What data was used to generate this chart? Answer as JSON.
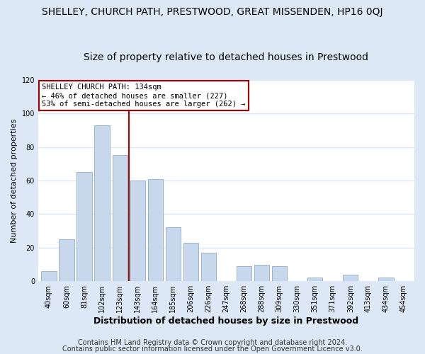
{
  "title": "SHELLEY, CHURCH PATH, PRESTWOOD, GREAT MISSENDEN, HP16 0QJ",
  "subtitle": "Size of property relative to detached houses in Prestwood",
  "xlabel": "Distribution of detached houses by size in Prestwood",
  "ylabel": "Number of detached properties",
  "bar_labels": [
    "40sqm",
    "60sqm",
    "81sqm",
    "102sqm",
    "123sqm",
    "143sqm",
    "164sqm",
    "185sqm",
    "206sqm",
    "226sqm",
    "247sqm",
    "268sqm",
    "288sqm",
    "309sqm",
    "330sqm",
    "351sqm",
    "371sqm",
    "392sqm",
    "413sqm",
    "434sqm",
    "454sqm"
  ],
  "bar_values": [
    6,
    25,
    65,
    93,
    75,
    60,
    61,
    32,
    23,
    17,
    0,
    9,
    10,
    9,
    0,
    2,
    0,
    4,
    0,
    2,
    0
  ],
  "bar_color": "#c8d8ec",
  "bar_edge_color": "#9ab4d0",
  "vline_x": 4.5,
  "vline_color": "#aa0000",
  "ylim": [
    0,
    120
  ],
  "yticks": [
    0,
    20,
    40,
    60,
    80,
    100,
    120
  ],
  "annotation_title": "SHELLEY CHURCH PATH: 134sqm",
  "annotation_line1": "← 46% of detached houses are smaller (227)",
  "annotation_line2": "53% of semi-detached houses are larger (262) →",
  "annotation_box_color": "#ffffff",
  "annotation_box_edge": "#aa0000",
  "footer1": "Contains HM Land Registry data © Crown copyright and database right 2024.",
  "footer2": "Contains public sector information licensed under the Open Government Licence v3.0.",
  "outer_bg": "#dce8f5",
  "plot_bg": "#ffffff",
  "grid_color": "#dce8f5",
  "title_fontsize": 10,
  "subtitle_fontsize": 10,
  "xlabel_fontsize": 9,
  "ylabel_fontsize": 8,
  "tick_fontsize": 7,
  "footer_fontsize": 7
}
